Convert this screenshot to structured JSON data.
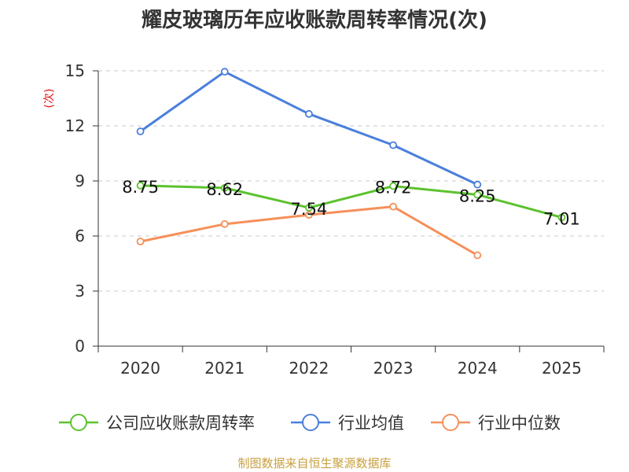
{
  "chart_data": {
    "type": "line",
    "title": "耀皮玻璃历年应收账款周转率情况(次)",
    "ylabel": "(次)",
    "xlabel": "",
    "categories": [
      "2020",
      "2021",
      "2022",
      "2023",
      "2024",
      "2025"
    ],
    "ylim": [
      0,
      15
    ],
    "yticks": [
      0,
      3,
      6,
      9,
      12,
      15
    ],
    "grid": true,
    "legend_position": "bottom",
    "series": [
      {
        "name": "公司应收账款周转率",
        "color": "#5cc22e",
        "values": [
          8.75,
          8.62,
          7.54,
          8.72,
          8.25,
          7.01
        ],
        "labels": [
          "8.75",
          "8.62",
          "7.54",
          "8.72",
          "8.25",
          "7.01"
        ]
      },
      {
        "name": "行业均值",
        "color": "#4a7fdc",
        "values": [
          11.7,
          14.95,
          12.65,
          10.95,
          8.8,
          null
        ]
      },
      {
        "name": "行业中位数",
        "color": "#f5905a",
        "values": [
          5.7,
          6.65,
          7.15,
          7.6,
          4.95,
          null
        ]
      }
    ]
  },
  "source": "制图数据来自恒生聚源数据库"
}
